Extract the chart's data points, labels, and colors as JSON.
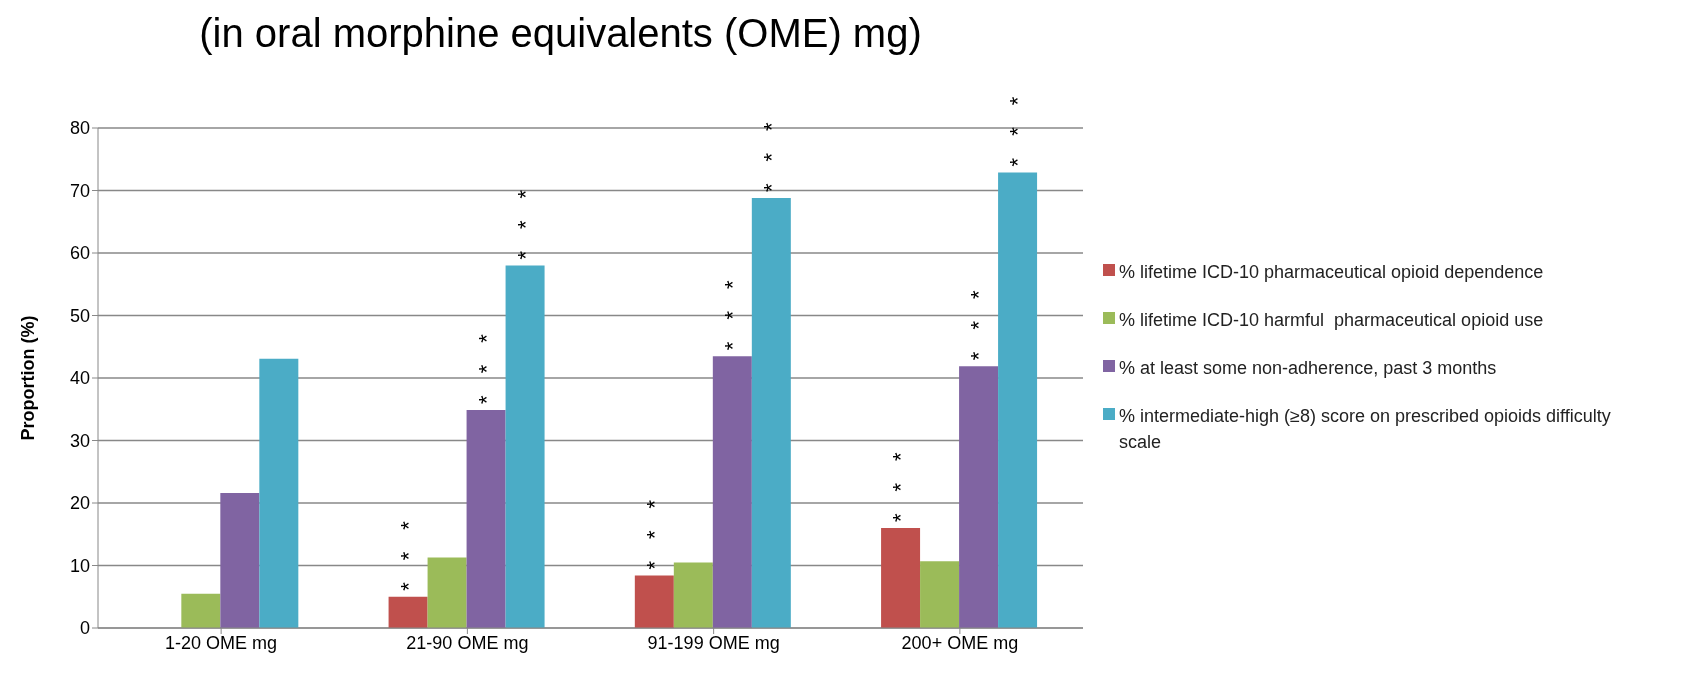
{
  "chart_data": {
    "type": "bar",
    "title": "(in oral morphine equivalents (OME) mg)",
    "ylabel": "Proportion (%)",
    "categories": [
      "1-20 OME mg",
      "21-90 OME mg",
      "91-199 OME mg",
      "200+ OME mg"
    ],
    "series": [
      {
        "name": "% lifetime ICD-10 pharmaceutical opioid dependence",
        "color": "#c0504d",
        "values": [
          null,
          5.0,
          8.4,
          16.0
        ],
        "value_labels": [
          null,
          "***",
          "***",
          "***"
        ]
      },
      {
        "name": "% lifetime ICD-10 harmful  pharmaceutical opioid use",
        "color": "#9bbb59",
        "values": [
          5.5,
          11.3,
          10.5,
          10.7
        ],
        "value_labels": [
          null,
          null,
          null,
          null
        ]
      },
      {
        "name": "% at least some non-adherence, past 3 months",
        "color": "#8064a2",
        "values": [
          21.6,
          34.9,
          43.5,
          41.9
        ],
        "value_labels": [
          null,
          "***",
          "***",
          "***"
        ]
      },
      {
        "name": "% intermediate-high (≥8) score on prescribed opioids difficulty scale",
        "color": "#4bacc6",
        "values": [
          43.1,
          58.0,
          68.8,
          72.9
        ],
        "value_labels": [
          null,
          "***",
          "***",
          "***"
        ]
      }
    ],
    "ylim": [
      0,
      80
    ],
    "yticks": [
      0,
      10,
      20,
      30,
      40,
      50,
      60,
      70,
      80
    ],
    "grid": "y",
    "legend": "right"
  }
}
